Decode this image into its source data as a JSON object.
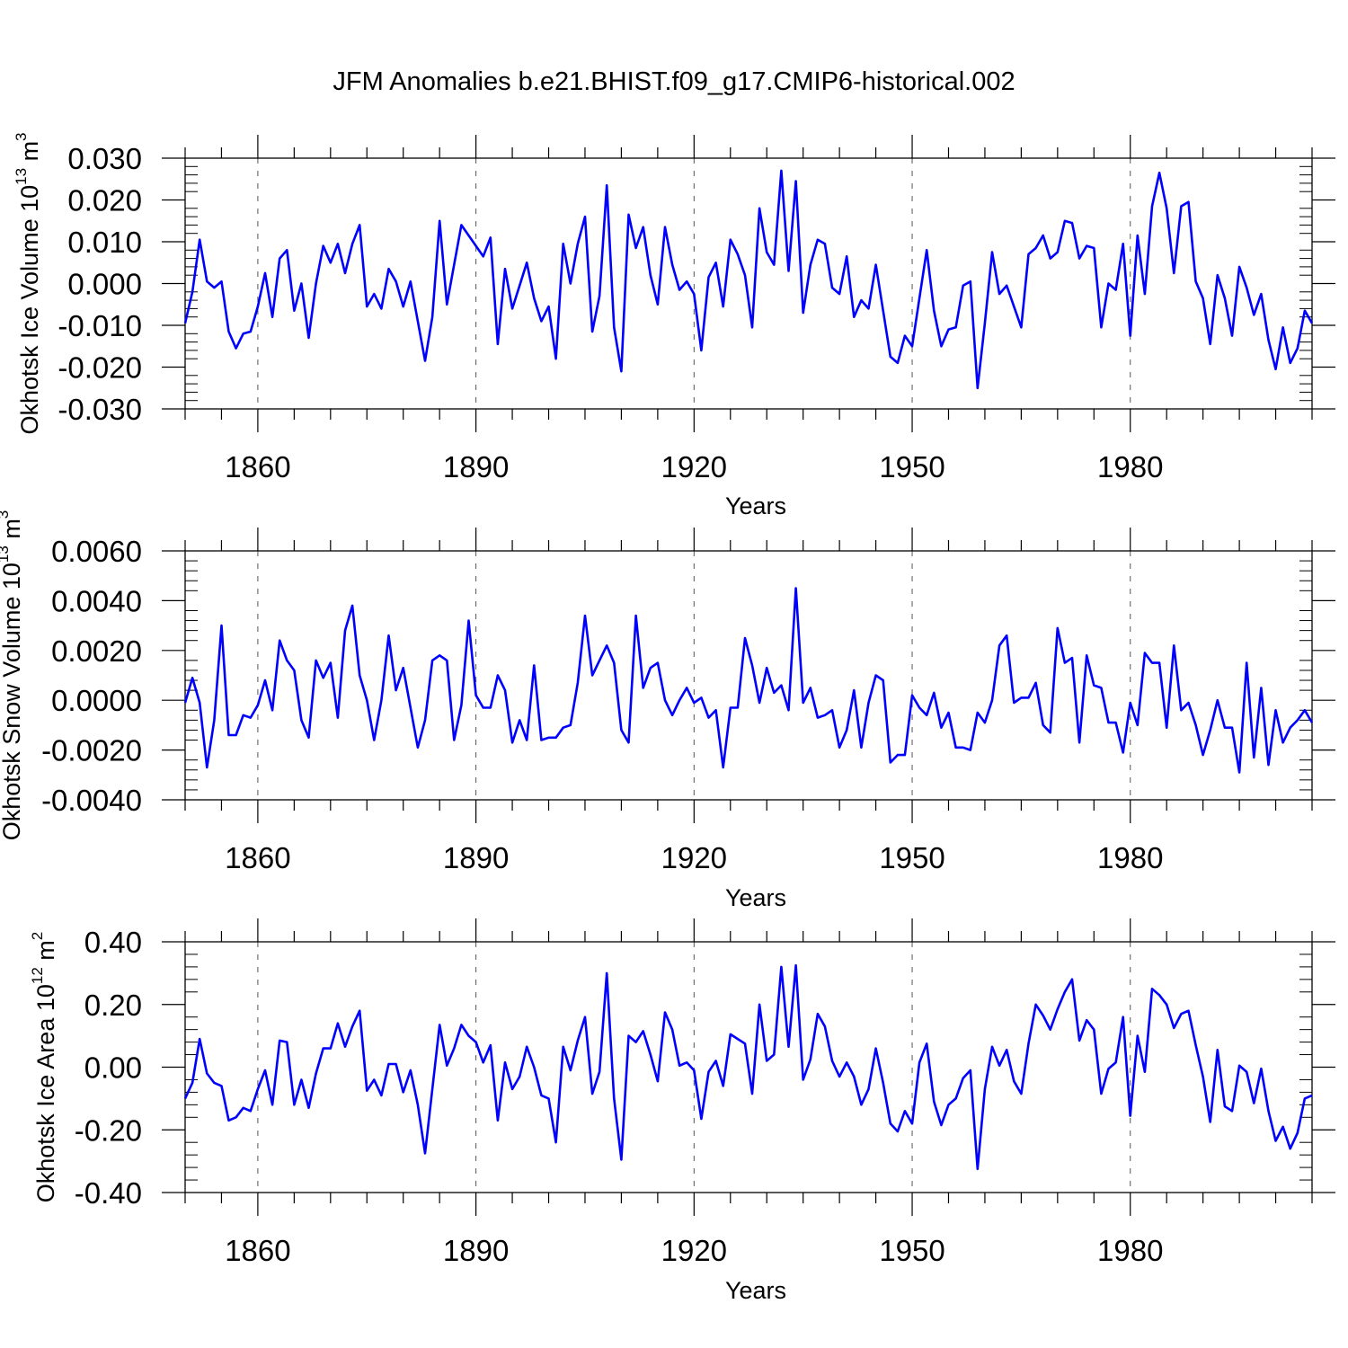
{
  "title": "JFM Anomalies b.e21.BHIST.f09_g17.CMIP6-historical.002",
  "colors": {
    "line": "#0000ff",
    "axis": "#000000",
    "grid": "#555555"
  },
  "chart_data": [
    {
      "type": "line",
      "panel": "ice-volume",
      "ylabel": "Okhotsk Ice Volume",
      "yunit_base": "10",
      "yunit_exp": "13",
      "yunit_tail": "m",
      "yunit_tail_exp": "3",
      "xlabel": "Years",
      "xlim": [
        1850,
        2005
      ],
      "ylim": [
        -0.03,
        0.03
      ],
      "xticks": [
        1860,
        1890,
        1920,
        1950,
        1980
      ],
      "xtick_labels": [
        "1860",
        "1890",
        "1920",
        "1950",
        "1980"
      ],
      "yticks": [
        -0.03,
        -0.02,
        -0.01,
        0.0,
        0.01,
        0.02,
        0.03
      ],
      "ytick_labels": [
        "-0.030",
        "-0.020",
        "-0.010",
        "0.000",
        "0.010",
        "0.020",
        "0.030"
      ],
      "grid": "vertical dashed at major x ticks",
      "x_start": 1850,
      "values": [
        -0.0095,
        -0.002,
        0.0105,
        0.0005,
        -0.001,
        0.0005,
        -0.0115,
        -0.0155,
        -0.012,
        -0.0115,
        -0.0055,
        0.0025,
        -0.008,
        0.006,
        0.008,
        -0.0065,
        0.0,
        -0.013,
        0.0,
        0.009,
        0.005,
        0.0095,
        0.0025,
        0.0095,
        0.014,
        -0.0055,
        -0.0025,
        -0.006,
        0.0035,
        0.0005,
        -0.0055,
        0.0005,
        -0.009,
        -0.0185,
        -0.008,
        0.015,
        -0.005,
        0.0045,
        0.014,
        0.0115,
        0.009,
        0.0065,
        0.011,
        -0.0145,
        0.0035,
        -0.006,
        -0.0005,
        0.005,
        -0.0035,
        -0.009,
        -0.0055,
        -0.018,
        0.0095,
        0.0,
        0.0095,
        0.016,
        -0.0115,
        -0.003,
        0.0235,
        -0.0105,
        -0.021,
        0.0165,
        0.0085,
        0.0135,
        0.002,
        -0.005,
        0.0135,
        0.0045,
        -0.0015,
        0.0005,
        -0.0025,
        -0.016,
        0.0015,
        0.005,
        -0.0055,
        0.0105,
        0.007,
        0.002,
        -0.0105,
        0.018,
        0.0075,
        0.0045,
        0.027,
        0.003,
        0.0245,
        -0.007,
        0.0045,
        0.0105,
        0.0095,
        -0.001,
        -0.0025,
        0.0065,
        -0.008,
        -0.004,
        -0.006,
        0.0045,
        -0.0065,
        -0.0175,
        -0.019,
        -0.0125,
        -0.015,
        -0.0035,
        0.008,
        -0.0065,
        -0.015,
        -0.011,
        -0.0105,
        -0.0005,
        0.0005,
        -0.025,
        -0.0095,
        0.0075,
        -0.0025,
        -0.0005,
        -0.0055,
        -0.0105,
        0.007,
        0.0085,
        0.0115,
        0.006,
        0.0075,
        0.015,
        0.0145,
        0.006,
        0.009,
        0.0085,
        -0.0105,
        0.0,
        -0.0015,
        0.0095,
        -0.0125,
        0.0115,
        -0.0025,
        0.0185,
        0.0265,
        0.018,
        0.0025,
        0.0185,
        0.0195,
        0.0005,
        -0.0035,
        -0.0145,
        0.002,
        -0.0035,
        -0.0125,
        0.004,
        -0.001,
        -0.0075,
        -0.0025,
        -0.0135,
        -0.0205,
        -0.0105,
        -0.019,
        -0.0155,
        -0.0065,
        -0.0095
      ]
    },
    {
      "type": "line",
      "panel": "snow-volume",
      "ylabel": "Okhotsk Snow Volume",
      "yunit_base": "10",
      "yunit_exp": "13",
      "yunit_tail": "m",
      "yunit_tail_exp": "3",
      "xlabel": "Years",
      "xlim": [
        1850,
        2005
      ],
      "ylim": [
        -0.004,
        0.006
      ],
      "xticks": [
        1860,
        1890,
        1920,
        1950,
        1980
      ],
      "xtick_labels": [
        "1860",
        "1890",
        "1920",
        "1950",
        "1980"
      ],
      "yticks": [
        -0.004,
        -0.002,
        0.0,
        0.002,
        0.004,
        0.006
      ],
      "ytick_labels": [
        "-0.0040",
        "-0.0020",
        "0.0000",
        "0.0020",
        "0.0040",
        "0.0060"
      ],
      "grid": "vertical dashed at major x ticks",
      "x_start": 1850,
      "values": [
        -0.0001,
        0.0009,
        -0.0001,
        -0.0027,
        -0.0008,
        0.003,
        -0.0014,
        -0.0014,
        -0.0006,
        -0.0007,
        -0.0002,
        0.0008,
        -0.0004,
        0.0024,
        0.0016,
        0.0012,
        -0.0008,
        -0.0015,
        0.0016,
        0.0009,
        0.0015,
        -0.0007,
        0.0028,
        0.0038,
        0.001,
        0.0,
        -0.0016,
        0.0,
        0.0026,
        0.0004,
        0.0013,
        -0.0003,
        -0.0019,
        -0.0008,
        0.0016,
        0.0018,
        0.0016,
        -0.0016,
        -0.0002,
        0.0032,
        0.0002,
        -0.0003,
        -0.0003,
        0.001,
        0.0004,
        -0.0017,
        -0.0008,
        -0.0016,
        0.0014,
        -0.0016,
        -0.0015,
        -0.0015,
        -0.0011,
        -0.001,
        0.0007,
        0.0034,
        0.001,
        0.0016,
        0.0022,
        0.0015,
        -0.0012,
        -0.0017,
        0.0034,
        0.0005,
        0.0013,
        0.0015,
        0.0,
        -0.0006,
        0.0,
        0.0005,
        -0.0001,
        0.0001,
        -0.0007,
        -0.0004,
        -0.0027,
        -0.0003,
        -0.0003,
        0.0025,
        0.0014,
        -0.0001,
        0.0013,
        0.0003,
        0.0006,
        -0.0004,
        0.0045,
        -0.0001,
        0.0005,
        -0.0007,
        -0.0006,
        -0.0004,
        -0.0019,
        -0.0012,
        0.0004,
        -0.0019,
        -0.0001,
        0.001,
        0.0008,
        -0.0025,
        -0.0022,
        -0.0022,
        0.0002,
        -0.0003,
        -0.0006,
        0.0003,
        -0.0011,
        -0.0005,
        -0.0019,
        -0.0019,
        -0.002,
        -0.0005,
        -0.0009,
        0.0,
        0.0022,
        0.0026,
        -0.0001,
        0.0001,
        0.0001,
        0.0007,
        -0.001,
        -0.0013,
        0.0029,
        0.0015,
        0.0017,
        -0.0017,
        0.0018,
        0.0006,
        0.0005,
        -0.0009,
        -0.0009,
        -0.0021,
        -0.0001,
        -0.001,
        0.0019,
        0.0015,
        0.0015,
        -0.0011,
        0.0022,
        -0.0004,
        -0.0001,
        -0.001,
        -0.0022,
        -0.0012,
        0.0,
        -0.0011,
        -0.0011,
        -0.0029,
        0.0015,
        -0.0023,
        0.0005,
        -0.0026,
        -0.0004,
        -0.0017,
        -0.0011,
        -0.0008,
        -0.0004,
        -0.0009
      ]
    },
    {
      "type": "line",
      "panel": "ice-area",
      "ylabel": "Okhotsk Ice Area",
      "yunit_base": "10",
      "yunit_exp": "12",
      "yunit_tail": "m",
      "yunit_tail_exp": "2",
      "xlabel": "Years",
      "xlim": [
        1850,
        2005
      ],
      "ylim": [
        -0.4,
        0.4
      ],
      "xticks": [
        1860,
        1890,
        1920,
        1950,
        1980
      ],
      "xtick_labels": [
        "1860",
        "1890",
        "1920",
        "1950",
        "1980"
      ],
      "yticks": [
        -0.4,
        -0.2,
        0.0,
        0.2,
        0.4
      ],
      "ytick_labels": [
        "-0.40",
        "-0.20",
        "0.00",
        "0.20",
        "0.40"
      ],
      "grid": "vertical dashed at major x ticks",
      "x_start": 1850,
      "values": [
        -0.1,
        -0.05,
        0.09,
        -0.02,
        -0.05,
        -0.06,
        -0.17,
        -0.16,
        -0.13,
        -0.14,
        -0.07,
        -0.01,
        -0.12,
        0.085,
        0.08,
        -0.12,
        -0.04,
        -0.13,
        -0.02,
        0.06,
        0.06,
        0.14,
        0.065,
        0.13,
        0.18,
        -0.075,
        -0.04,
        -0.09,
        0.01,
        0.01,
        -0.08,
        -0.01,
        -0.12,
        -0.275,
        -0.07,
        0.135,
        0.005,
        0.06,
        0.135,
        0.1,
        0.08,
        0.015,
        0.07,
        -0.17,
        0.015,
        -0.07,
        -0.03,
        0.065,
        0.0,
        -0.09,
        -0.1,
        -0.24,
        0.065,
        -0.01,
        0.085,
        0.16,
        -0.085,
        -0.015,
        0.3,
        -0.1,
        -0.295,
        0.1,
        0.08,
        0.115,
        0.04,
        -0.045,
        0.175,
        0.12,
        0.005,
        0.015,
        -0.01,
        -0.165,
        -0.015,
        0.02,
        -0.06,
        0.105,
        0.09,
        0.075,
        -0.085,
        0.2,
        0.02,
        0.04,
        0.32,
        0.065,
        0.325,
        -0.04,
        0.025,
        0.17,
        0.13,
        0.02,
        -0.03,
        0.015,
        -0.03,
        -0.12,
        -0.07,
        0.06,
        -0.05,
        -0.18,
        -0.205,
        -0.14,
        -0.18,
        0.015,
        0.075,
        -0.11,
        -0.185,
        -0.12,
        -0.1,
        -0.035,
        -0.01,
        -0.325,
        -0.07,
        0.065,
        0.005,
        0.055,
        -0.045,
        -0.085,
        0.075,
        0.2,
        0.165,
        0.12,
        0.185,
        0.24,
        0.28,
        0.085,
        0.15,
        0.12,
        -0.085,
        -0.005,
        0.015,
        0.16,
        -0.155,
        0.1,
        -0.015,
        0.25,
        0.23,
        0.2,
        0.125,
        0.17,
        0.18,
        0.07,
        -0.03,
        -0.175,
        0.055,
        -0.125,
        -0.14,
        0.005,
        -0.015,
        -0.115,
        -0.005,
        -0.14,
        -0.235,
        -0.19,
        -0.26,
        -0.21,
        -0.1,
        -0.09
      ]
    }
  ]
}
